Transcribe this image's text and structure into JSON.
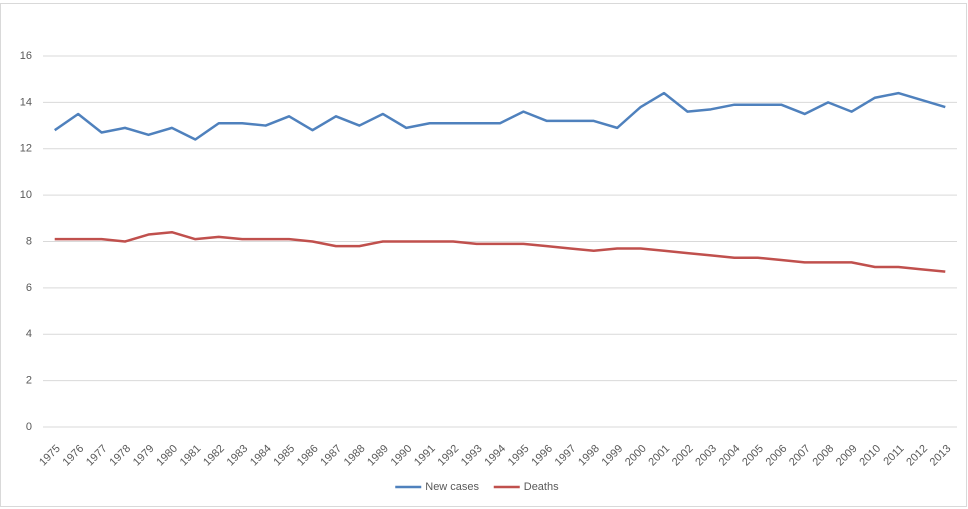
{
  "chart_data": {
    "type": "line",
    "categories": [
      "1975",
      "1976",
      "1977",
      "1978",
      "1979",
      "1980",
      "1981",
      "1982",
      "1983",
      "1984",
      "1985",
      "1986",
      "1987",
      "1988",
      "1989",
      "1990",
      "1991",
      "1992",
      "1993",
      "1994",
      "1995",
      "1996",
      "1997",
      "1998",
      "1999",
      "2000",
      "2001",
      "2002",
      "2003",
      "2004",
      "2005",
      "2006",
      "2007",
      "2008",
      "2009",
      "2010",
      "2011",
      "2012",
      "2013"
    ],
    "series": [
      {
        "name": "New cases",
        "color": "#4f81bd",
        "values": [
          12.8,
          13.5,
          12.7,
          12.9,
          12.6,
          12.9,
          12.4,
          13.1,
          13.1,
          13.0,
          13.4,
          12.8,
          13.4,
          13.0,
          13.5,
          12.9,
          13.1,
          13.1,
          13.1,
          13.1,
          13.6,
          13.2,
          13.2,
          13.2,
          12.9,
          13.8,
          14.4,
          13.6,
          13.7,
          13.9,
          13.9,
          13.9,
          13.5,
          14.0,
          13.6,
          14.2,
          14.4,
          14.1,
          13.8
        ]
      },
      {
        "name": "Deaths",
        "color": "#c0504d",
        "values": [
          8.1,
          8.1,
          8.1,
          8.0,
          8.3,
          8.4,
          8.1,
          8.2,
          8.1,
          8.1,
          8.1,
          8.0,
          7.8,
          7.8,
          8.0,
          8.0,
          8.0,
          8.0,
          7.9,
          7.9,
          7.9,
          7.8,
          7.7,
          7.6,
          7.7,
          7.7,
          7.6,
          7.5,
          7.4,
          7.3,
          7.3,
          7.2,
          7.1,
          7.1,
          7.1,
          6.9,
          6.9,
          6.8,
          6.7
        ]
      }
    ],
    "ylim": [
      0,
      16
    ],
    "yticks": [
      0,
      2,
      4,
      6,
      8,
      10,
      12,
      14,
      16
    ],
    "grid": true,
    "legend": "bottom"
  }
}
